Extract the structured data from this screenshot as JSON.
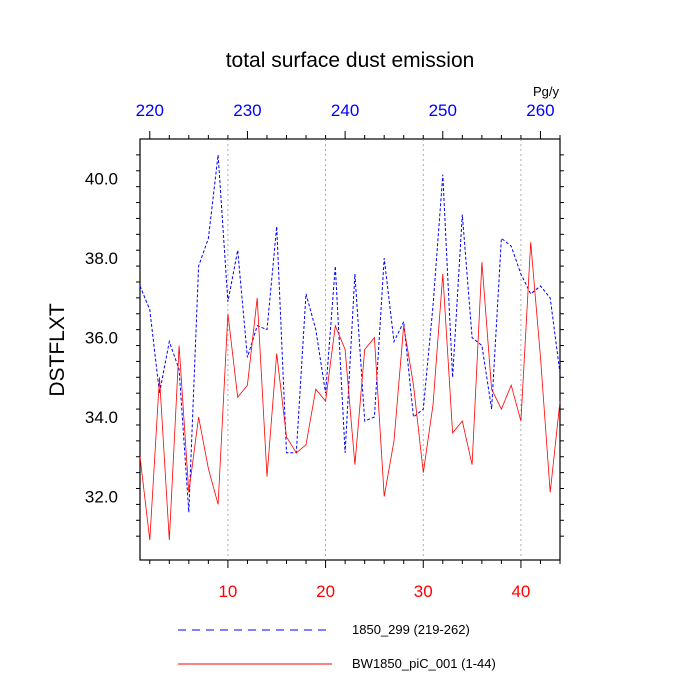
{
  "chart_data": {
    "type": "line",
    "title": "total surface dust emission",
    "ylabel": "DSTFLXT",
    "units": "Pg/y",
    "ylim": [
      30.4,
      41.0
    ],
    "y_ticks": [
      32.0,
      34.0,
      36.0,
      38.0,
      40.0
    ],
    "y_tick_labels": [
      "32.0",
      "34.0",
      "36.0",
      "38.0",
      "40.0"
    ],
    "bottom_axis": {
      "range": [
        1,
        44
      ],
      "ticks": [
        10,
        20,
        30,
        40
      ],
      "tick_labels": [
        "10",
        "20",
        "30",
        "40"
      ],
      "color": "#ff0000"
    },
    "top_axis": {
      "range": [
        219,
        262
      ],
      "ticks": [
        220,
        230,
        240,
        250,
        260
      ],
      "tick_labels": [
        "220",
        "230",
        "240",
        "250",
        "260"
      ],
      "color": "#0000ff"
    },
    "grid_x": [
      10,
      20,
      30,
      40
    ],
    "series": [
      {
        "name": "1850_299 (219-262)",
        "axis": "top",
        "color": "#0000ff",
        "style": "dashed",
        "x": [
          219,
          220,
          221,
          222,
          223,
          224,
          225,
          226,
          227,
          228,
          229,
          230,
          231,
          232,
          233,
          234,
          235,
          236,
          237,
          238,
          239,
          240,
          241,
          242,
          243,
          244,
          245,
          246,
          247,
          248,
          249,
          250,
          251,
          252,
          253,
          254,
          255,
          256,
          257,
          258,
          259,
          260,
          261,
          262
        ],
        "values": [
          37.3,
          36.7,
          34.6,
          35.9,
          35.2,
          31.6,
          37.8,
          38.5,
          40.6,
          36.9,
          38.2,
          35.5,
          36.3,
          36.2,
          38.8,
          33.1,
          33.1,
          37.1,
          36.2,
          34.6,
          37.8,
          33.1,
          37.6,
          33.9,
          34.0,
          38.0,
          35.9,
          36.4,
          34.0,
          34.2,
          36.8,
          40.1,
          35.0,
          39.1,
          36.0,
          35.8,
          34.2,
          38.5,
          38.3,
          37.6,
          37.1,
          37.3,
          37.0,
          35.1
        ]
      },
      {
        "name": "BW1850_piC_001 (1-44)",
        "axis": "bottom",
        "color": "#ff0000",
        "style": "solid",
        "x": [
          1,
          2,
          3,
          4,
          5,
          6,
          7,
          8,
          9,
          10,
          11,
          12,
          13,
          14,
          15,
          16,
          17,
          18,
          19,
          20,
          21,
          22,
          23,
          24,
          25,
          26,
          27,
          28,
          29,
          30,
          31,
          32,
          33,
          34,
          35,
          36,
          37,
          38,
          39,
          40,
          41,
          42,
          43,
          44
        ],
        "values": [
          33.0,
          30.9,
          35.0,
          30.9,
          35.8,
          32.1,
          34.0,
          32.7,
          31.8,
          36.6,
          34.5,
          34.8,
          37.0,
          32.5,
          35.6,
          33.5,
          33.1,
          33.3,
          34.7,
          34.4,
          36.3,
          35.7,
          32.8,
          35.7,
          36.0,
          32.0,
          33.4,
          36.3,
          34.8,
          32.6,
          34.3,
          37.6,
          33.6,
          33.9,
          32.8,
          37.9,
          34.7,
          34.2,
          34.8,
          33.9,
          38.4,
          35.5,
          32.1,
          34.4
        ]
      }
    ]
  }
}
